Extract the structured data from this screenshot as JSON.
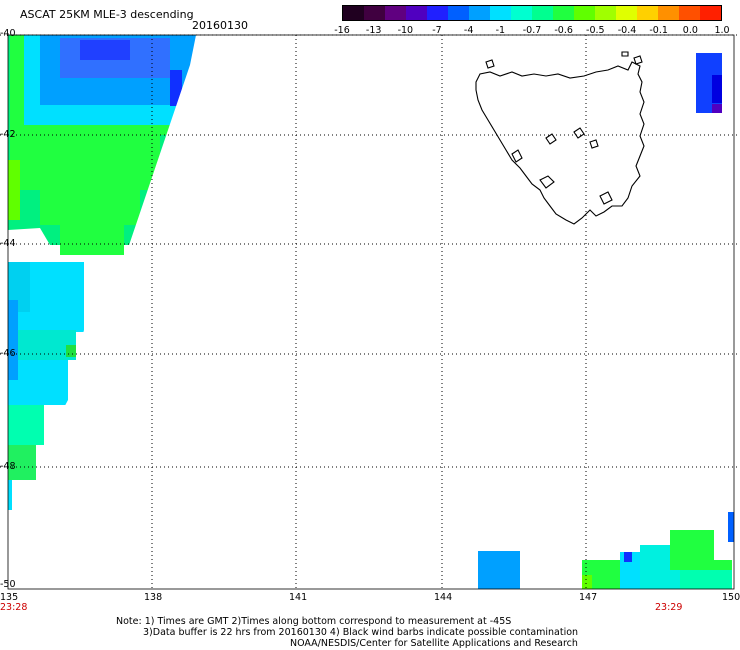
{
  "header": {
    "title": "ASCAT 25KM MLE-3 descending",
    "date": "20160130"
  },
  "colorbar": {
    "tick_labels": [
      "-16",
      "-13",
      "-10",
      "-7",
      "-4",
      "-1",
      "-0.7",
      "-0.6",
      "-0.5",
      "-0.4",
      "-0.1",
      "0.0",
      "1.0"
    ],
    "colors": [
      "#200020",
      "#400040",
      "#600080",
      "#5000c0",
      "#2020ff",
      "#0060ff",
      "#00a0ff",
      "#00e0ff",
      "#00ffd0",
      "#00ff90",
      "#20ff40",
      "#60ff00",
      "#a0ff00",
      "#e0ff00",
      "#ffd000",
      "#ff9000",
      "#ff5000",
      "#ff2000"
    ]
  },
  "map": {
    "lon_labels": [
      "135",
      "138",
      "141",
      "144",
      "147",
      "150"
    ],
    "lat_labels": [
      "-40",
      "-42",
      "-44",
      "-46",
      "-48",
      "-50"
    ],
    "time_labels": [
      "23:28",
      "23:29"
    ],
    "region": "Tasmania"
  },
  "footer": {
    "line1": "Note: 1) Times are GMT 2)Times along bottom correspond to measurement at -45S",
    "line2": "3)Data buffer is 22 hrs from 20160130 4) Black wind barbs indicate possible contamination",
    "line3": "NOAA/NESDIS/Center for Satellite Applications and Research"
  }
}
